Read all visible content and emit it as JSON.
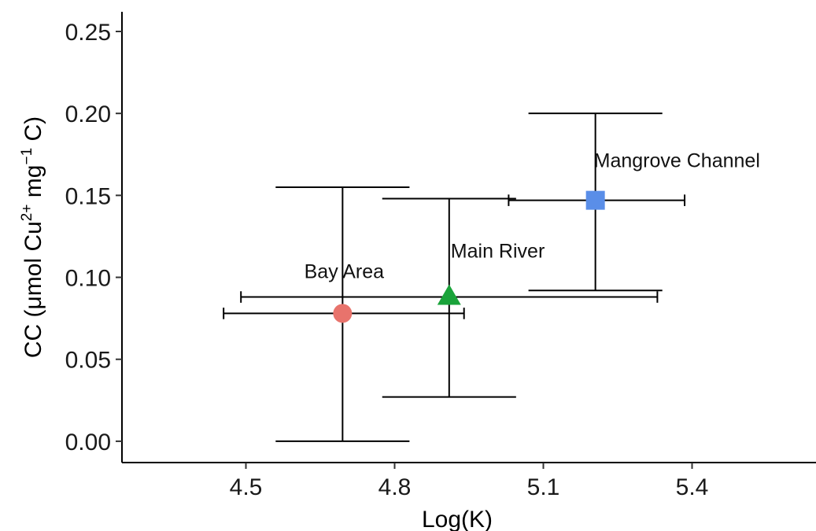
{
  "chart_data": {
    "type": "scatter",
    "title": "",
    "xlabel": "Log(K)",
    "ylabel": {
      "pre": "CC (μmol Cu",
      "sup1": "2+",
      "mid": " mg",
      "sup2": "−1",
      "post": " C)"
    },
    "xlim": [
      4.25,
      5.65
    ],
    "ylim": [
      -0.013,
      0.262
    ],
    "x_ticks": [
      4.5,
      4.8,
      5.1,
      5.4
    ],
    "x_tick_labels": [
      "4.5",
      "4.8",
      "5.1",
      "5.4"
    ],
    "y_ticks": [
      0.0,
      0.05,
      0.1,
      0.15,
      0.2,
      0.25
    ],
    "y_tick_labels": [
      "0.00",
      "0.05",
      "0.10",
      "0.15",
      "0.20",
      "0.25"
    ],
    "grid": false,
    "legend": "none",
    "points": [
      {
        "label": "Bay Area",
        "x": 4.695,
        "y": 0.078,
        "x_err": [
          4.455,
          4.94
        ],
        "y_err": [
          0.0,
          0.155
        ],
        "marker": "circle",
        "color": "#e8736c",
        "x_cap_halfheight": 0.0035,
        "y_cap_halfwidth": 0.135
      },
      {
        "label": "Main River",
        "x": 4.91,
        "y": 0.088,
        "x_err": [
          4.49,
          5.33
        ],
        "y_err": [
          0.027,
          0.148
        ],
        "marker": "triangle",
        "color": "#1aa33a",
        "x_cap_halfheight": 0.0035,
        "y_cap_halfwidth": 0.135
      },
      {
        "label": "Mangrove Channel",
        "x": 5.205,
        "y": 0.147,
        "x_err": [
          5.03,
          5.385
        ],
        "y_err": [
          0.092,
          0.2
        ],
        "marker": "square",
        "color": "#5a8ee8",
        "x_cap_halfheight": 0.0035,
        "y_cap_halfwidth": 0.135
      }
    ]
  }
}
